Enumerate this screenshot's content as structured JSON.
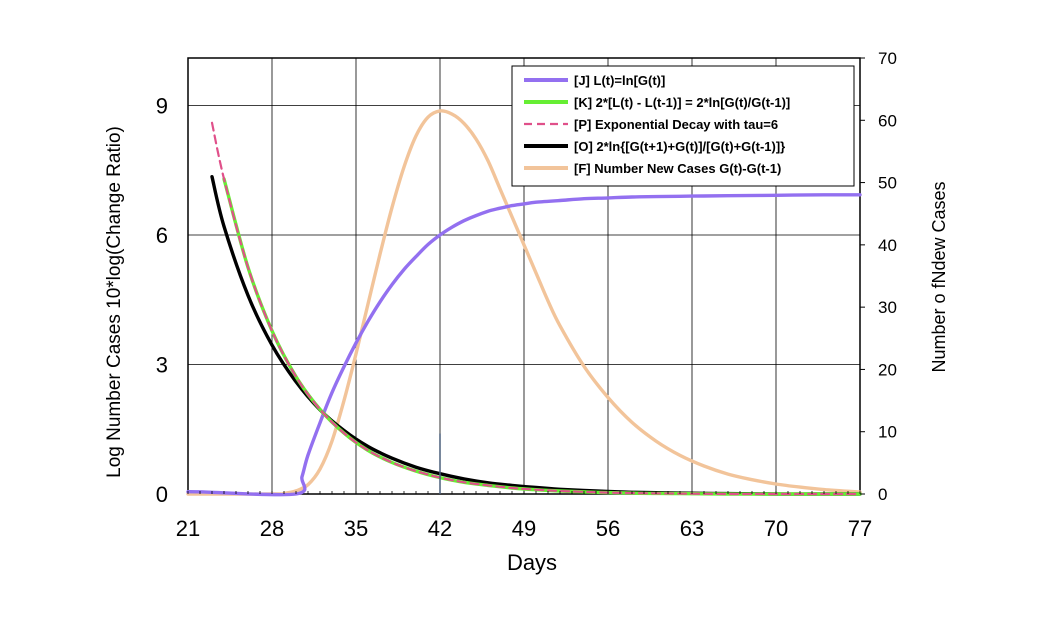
{
  "chart_data": {
    "type": "line",
    "xlabel": "Days",
    "ylabel_left": "Log Number Cases 10*log(Change Ratio)",
    "ylabel_right": "Number o fNdew Cases",
    "x_ticks": [
      21,
      28,
      35,
      42,
      49,
      56,
      63,
      70,
      77
    ],
    "y_left_ticks": [
      0,
      3,
      6,
      9
    ],
    "y_right_ticks": [
      0,
      10,
      20,
      30,
      40,
      50,
      60,
      70
    ],
    "xlim": [
      21,
      77
    ],
    "ylim_left": [
      0,
      10.1
    ],
    "ylim_right": [
      0,
      70
    ],
    "grid": true,
    "legend_position": "top-right",
    "marker_line_x": 42,
    "marker_line_y_left": 1.4,
    "series": [
      {
        "name": "[J] L(t)=ln[G(t)]",
        "axis": "left",
        "color": "#9370f0",
        "style": "solid",
        "x": [
          21,
          22,
          30,
          30.5,
          31,
          32,
          33,
          34,
          35,
          36,
          37,
          38,
          39,
          40,
          41,
          42,
          43,
          44,
          45,
          46,
          47,
          48,
          49,
          50,
          52,
          54,
          56,
          58,
          60,
          63,
          66,
          70,
          74,
          77
        ],
        "y": [
          0.05,
          0.05,
          0.0,
          0.4,
          0.9,
          1.65,
          2.35,
          2.95,
          3.5,
          4.0,
          4.45,
          4.85,
          5.2,
          5.5,
          5.78,
          6.0,
          6.18,
          6.33,
          6.45,
          6.55,
          6.62,
          6.68,
          6.72,
          6.76,
          6.8,
          6.84,
          6.86,
          6.88,
          6.89,
          6.9,
          6.91,
          6.92,
          6.93,
          6.93
        ]
      },
      {
        "name": "[K] 2*[L(t) - L(t-1)] = 2*ln[G(t)/G(t-1)]",
        "axis": "left",
        "color": "#66ee33",
        "style": "solid",
        "x": [
          24,
          26,
          28,
          30,
          32,
          34,
          36,
          38,
          40,
          42,
          44,
          46,
          48,
          50,
          52,
          55,
          58,
          62,
          66,
          70,
          74,
          77
        ],
        "y": [
          7.3,
          5.25,
          3.78,
          2.72,
          1.96,
          1.41,
          1.01,
          0.73,
          0.53,
          0.38,
          0.27,
          0.2,
          0.14,
          0.1,
          0.07,
          0.04,
          0.02,
          0.01,
          0.0,
          0.0,
          0.0,
          0.0
        ]
      },
      {
        "name": "[P] Exponential Decay with tau=6",
        "axis": "left",
        "color": "#e0508a",
        "style": "dashed",
        "x": [
          23,
          24,
          26,
          28,
          30,
          32,
          34,
          36,
          38,
          40,
          42,
          44,
          46,
          48,
          50,
          52,
          55,
          58,
          62,
          66,
          70,
          74,
          77
        ],
        "y": [
          8.6,
          7.3,
          5.25,
          3.78,
          2.72,
          1.96,
          1.41,
          1.01,
          0.73,
          0.53,
          0.38,
          0.27,
          0.2,
          0.14,
          0.1,
          0.07,
          0.04,
          0.02,
          0.01,
          0.0,
          0.0,
          0.0,
          0.0
        ]
      },
      {
        "name": "[O] 2*ln{[G(t+1)+G(t)]/[G(t)+G(t-1)]}",
        "axis": "left",
        "color": "#000000",
        "style": "solid",
        "x": [
          23,
          24,
          26,
          28,
          30,
          32,
          34,
          36,
          38,
          40,
          42,
          44,
          46,
          48,
          50,
          52,
          55,
          58,
          62,
          66,
          70,
          74,
          77
        ],
        "y": [
          7.35,
          6.2,
          4.6,
          3.45,
          2.6,
          1.95,
          1.47,
          1.1,
          0.83,
          0.62,
          0.47,
          0.35,
          0.26,
          0.2,
          0.15,
          0.11,
          0.07,
          0.04,
          0.02,
          0.01,
          0.0,
          0.0,
          0.0
        ]
      },
      {
        "name": "[F] Number New Cases G(t)-G(t-1)",
        "axis": "right",
        "color": "#f2c49a",
        "style": "solid",
        "x": [
          21,
          28,
          29,
          30,
          31,
          32,
          33,
          34,
          35,
          36,
          37,
          38,
          39,
          40,
          41,
          42,
          43,
          44,
          45,
          46,
          47,
          48,
          49,
          50,
          51,
          52,
          54,
          56,
          58,
          60,
          62,
          64,
          66,
          68,
          70,
          72,
          74,
          77
        ],
        "y": [
          0,
          0,
          0.1,
          0.5,
          1.5,
          4,
          8.5,
          15,
          22.5,
          30.5,
          38.5,
          46,
          52.5,
          57.5,
          60.5,
          61.5,
          61,
          59.5,
          57,
          53.5,
          49,
          44.5,
          40,
          35.5,
          31,
          27,
          20.5,
          15.5,
          11.5,
          8.5,
          6.2,
          4.5,
          3.2,
          2.3,
          1.6,
          1.1,
          0.7,
          0.3
        ]
      }
    ]
  }
}
